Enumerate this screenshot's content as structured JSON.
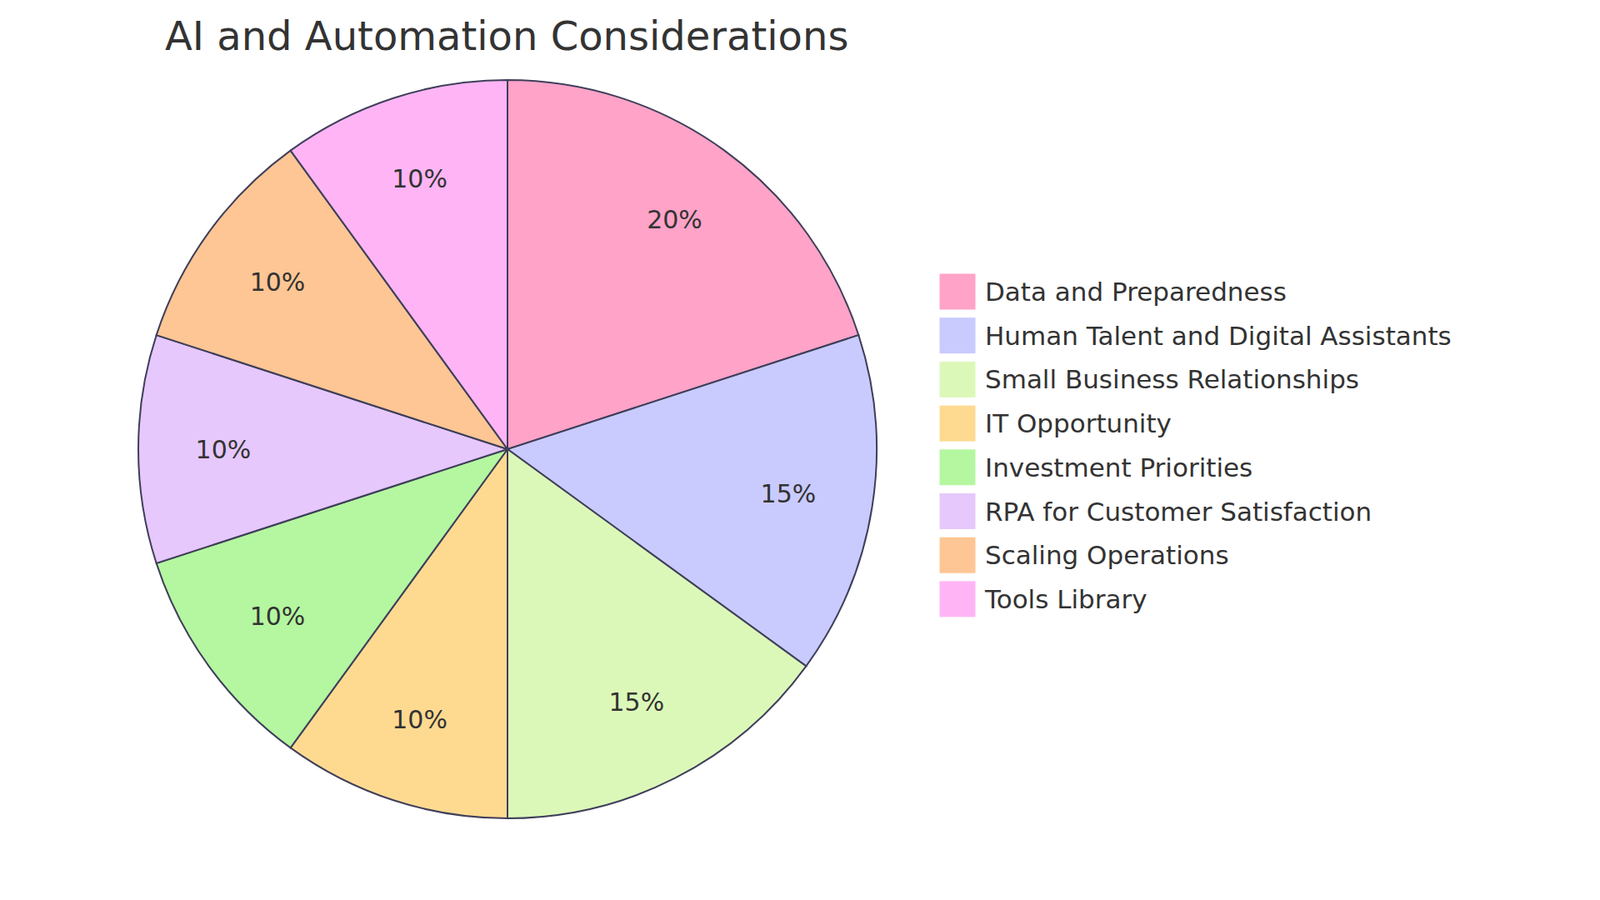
{
  "chart_data": {
    "type": "pie",
    "title": "AI and Automation Considerations",
    "categories": [
      "Data and Preparedness",
      "Human Talent and Digital Assistants",
      "Small Business Relationships",
      "IT Opportunity",
      "Investment Priorities",
      "RPA for Customer Satisfaction",
      "Scaling Operations",
      "Tools Library"
    ],
    "values": [
      20,
      15,
      15,
      10,
      10,
      10,
      10,
      10
    ],
    "value_labels": [
      "20%",
      "15%",
      "15%",
      "10%",
      "10%",
      "10%",
      "10%",
      "10%"
    ],
    "colors": [
      "#ffa3c8",
      "#c9cbff",
      "#dcf8b9",
      "#feda91",
      "#b4f7a0",
      "#e6c8fc",
      "#fec694",
      "#ffb5f5"
    ],
    "data_labels": true,
    "legend": "right"
  }
}
